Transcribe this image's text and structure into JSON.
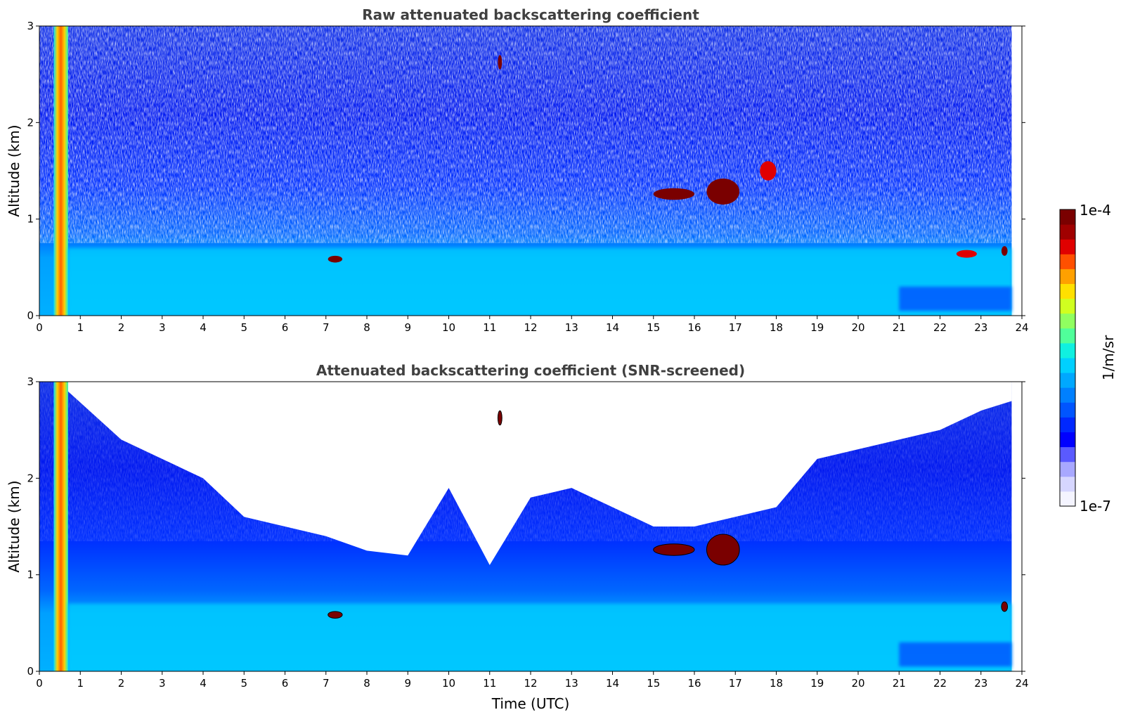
{
  "chart_data": [
    {
      "type": "heatmap",
      "title": "Raw attenuated backscattering coefficient",
      "xlabel": "",
      "ylabel": "Altitude (km)",
      "xlim": [
        0,
        24
      ],
      "ylim": [
        0,
        3
      ],
      "xticks": [
        "0",
        "1",
        "2",
        "3",
        "4",
        "5",
        "6",
        "7",
        "8",
        "9",
        "10",
        "11",
        "12",
        "13",
        "14",
        "15",
        "16",
        "17",
        "18",
        "19",
        "20",
        "21",
        "22",
        "23",
        "24"
      ],
      "yticks": [
        "0",
        "1",
        "2",
        "3"
      ],
      "data_end_time": 23.75,
      "log_color_scale": true,
      "features": [
        {
          "name": "near-field band",
          "x": [
            0.35,
            0.7
          ],
          "y": [
            0,
            3
          ],
          "level": "1e-4"
        },
        {
          "name": "boundary layer aerosol",
          "x": [
            0.7,
            23.75
          ],
          "y": [
            0,
            0.7
          ],
          "level": "~2e-6"
        },
        {
          "name": "cloud",
          "x": [
            7.05,
            7.4
          ],
          "y": [
            0.55,
            0.62
          ],
          "level": "1e-4"
        },
        {
          "name": "cloud",
          "x": [
            11.2,
            11.3
          ],
          "y": [
            2.55,
            2.7
          ],
          "level": "1e-4"
        },
        {
          "name": "cloud",
          "x": [
            15.0,
            16.0
          ],
          "y": [
            1.2,
            1.32
          ],
          "level": "1e-4"
        },
        {
          "name": "cloud",
          "x": [
            16.3,
            17.1
          ],
          "y": [
            1.15,
            1.42
          ],
          "level": "1e-4"
        },
        {
          "name": "cloud",
          "x": [
            17.6,
            18.0
          ],
          "y": [
            1.4,
            1.6
          ],
          "level": "5e-5"
        },
        {
          "name": "cloud",
          "x": [
            22.4,
            22.9
          ],
          "y": [
            0.6,
            0.68
          ],
          "level": "5e-5"
        },
        {
          "name": "cloud",
          "x": [
            23.5,
            23.65
          ],
          "y": [
            0.62,
            0.72
          ],
          "level": "1e-4"
        }
      ]
    },
    {
      "type": "heatmap",
      "title": "Attenuated backscattering coefficient (SNR-screened)",
      "xlabel": "Time (UTC)",
      "ylabel": "Altitude (km)",
      "xlim": [
        0,
        24
      ],
      "ylim": [
        0,
        3
      ],
      "xticks": [
        "0",
        "1",
        "2",
        "3",
        "4",
        "5",
        "6",
        "7",
        "8",
        "9",
        "10",
        "11",
        "12",
        "13",
        "14",
        "15",
        "16",
        "17",
        "18",
        "19",
        "20",
        "21",
        "22",
        "23",
        "24"
      ],
      "yticks": [
        "0",
        "1",
        "2",
        "3"
      ],
      "data_end_time": 23.75,
      "log_color_scale": true,
      "features": [
        {
          "name": "near-field band",
          "x": [
            0.35,
            0.7
          ],
          "y": [
            0,
            3
          ],
          "level": "1e-4"
        },
        {
          "name": "boundary layer aerosol",
          "x": [
            0.7,
            23.75
          ],
          "y": [
            0,
            0.7
          ],
          "level": "~2e-6"
        },
        {
          "name": "screened region top",
          "x": [
            0.7,
            23.75
          ],
          "y": [
            1.0,
            3
          ],
          "level": "masked"
        },
        {
          "name": "cloud",
          "x": [
            7.05,
            7.4
          ],
          "y": [
            0.55,
            0.62
          ],
          "level": "1e-4"
        },
        {
          "name": "cloud",
          "x": [
            11.2,
            11.3
          ],
          "y": [
            2.55,
            2.7
          ],
          "level": "1e-4"
        },
        {
          "name": "cloud",
          "x": [
            15.0,
            16.0
          ],
          "y": [
            1.2,
            1.32
          ],
          "level": "1e-4"
        },
        {
          "name": "cloud",
          "x": [
            16.3,
            17.1
          ],
          "y": [
            1.1,
            1.42
          ],
          "level": "1e-4"
        },
        {
          "name": "cloud",
          "x": [
            23.5,
            23.65
          ],
          "y": [
            0.62,
            0.72
          ],
          "level": "1e-4"
        }
      ]
    }
  ],
  "colorbar": {
    "label": "1/m/sr",
    "max_label": "1e-4",
    "min_label": "1e-7",
    "colors": [
      "#f4f4ff",
      "#d6d6ff",
      "#a8a8ff",
      "#5a5aff",
      "#0000ff",
      "#0028ff",
      "#0055ff",
      "#0080ff",
      "#00a8ff",
      "#00d0ff",
      "#10f0e0",
      "#50ff9a",
      "#90ff60",
      "#d0ff20",
      "#ffe000",
      "#ffa000",
      "#ff5000",
      "#e00000",
      "#a00000",
      "#7a0000"
    ]
  }
}
